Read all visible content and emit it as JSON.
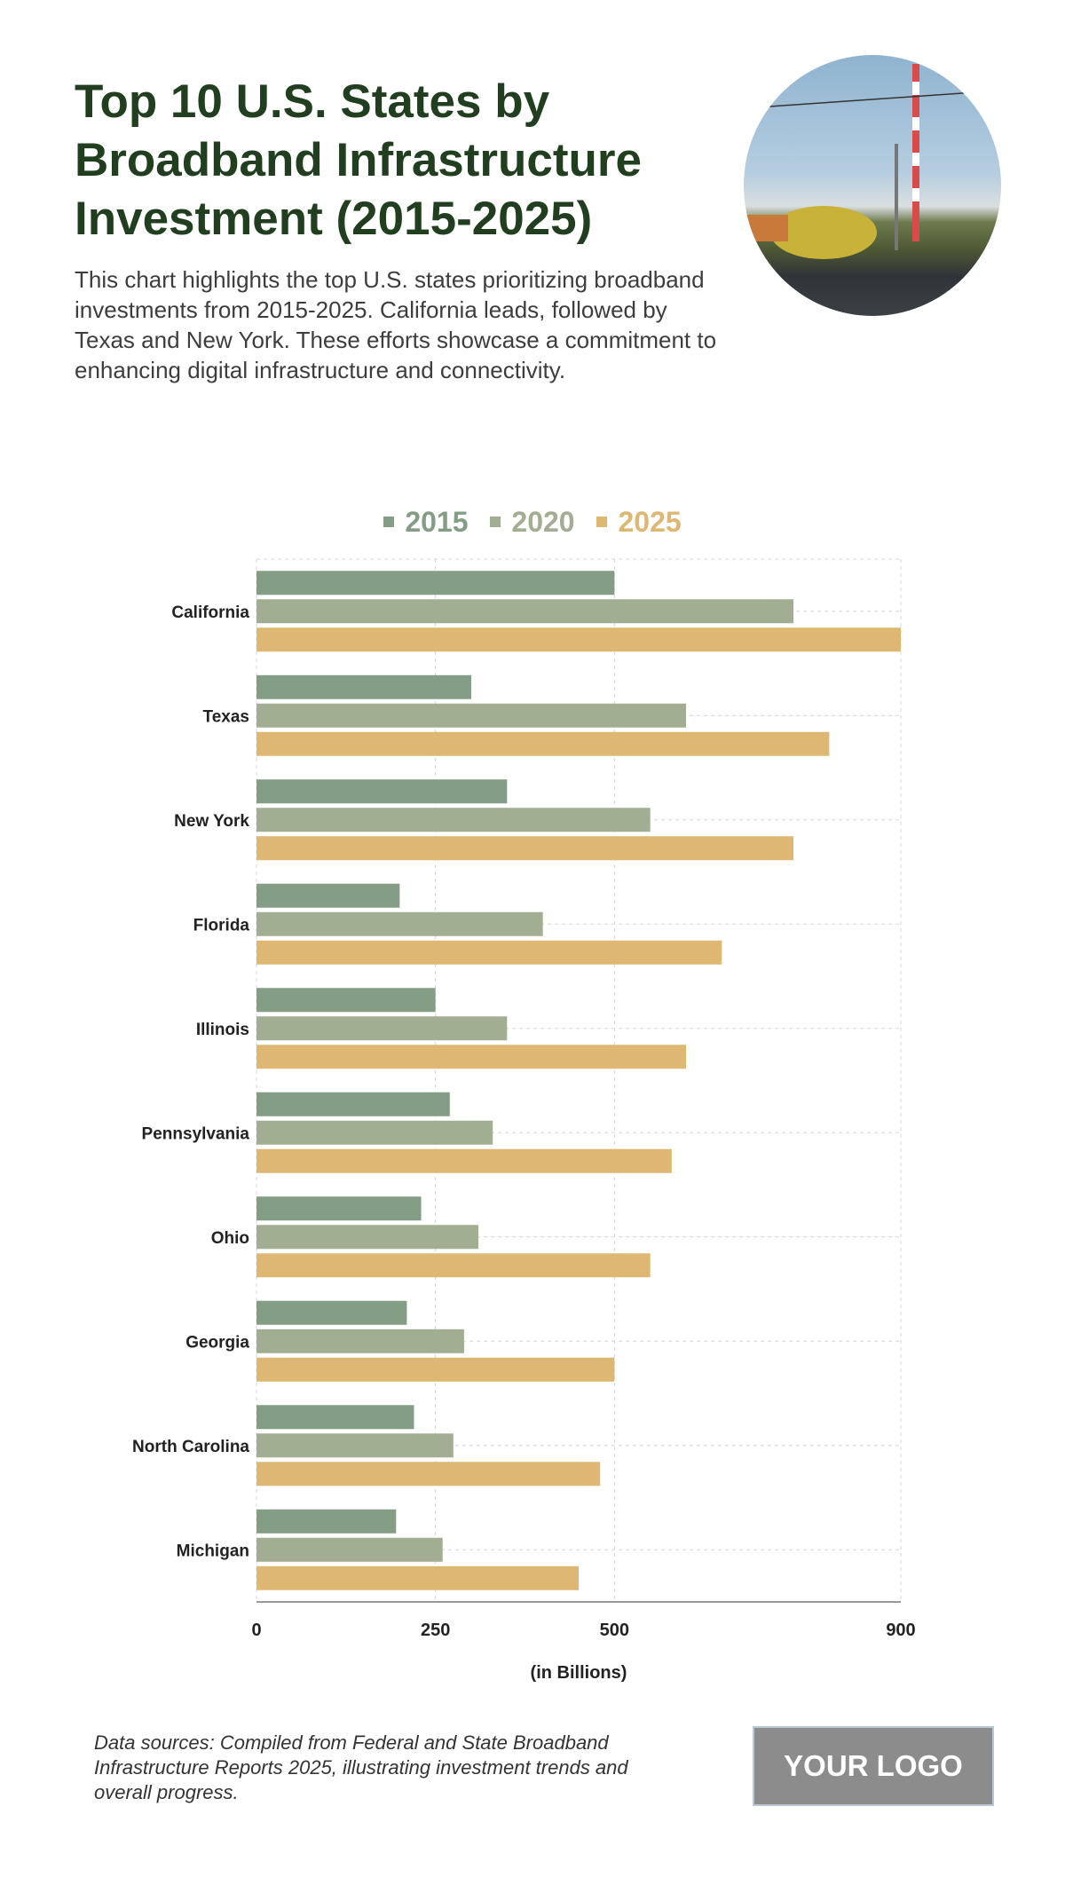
{
  "header": {
    "title": "Top 10 U.S. States by Broadband Infrastructure Investment (2015-2025)",
    "subtitle": "This chart highlights the top U.S. states prioritizing broadband investments from 2015-2025. California leads, followed by Texas and New York. These efforts showcase a commitment to enhancing digital infrastructure and connectivity."
  },
  "footer": {
    "source": "Data sources: Compiled from Federal and State Broadband Infrastructure Reports 2025, illustrating investment trends and overall progress.",
    "logo": "YOUR LOGO"
  },
  "chart_data": {
    "type": "bar",
    "orientation": "horizontal",
    "title": "",
    "xlabel": "(in Billions)",
    "ylabel": "",
    "xlim": [
      0,
      900
    ],
    "xticks": [
      0,
      250,
      500,
      900
    ],
    "grid": true,
    "legend_position": "top",
    "categories": [
      "California",
      "Texas",
      "New York",
      "Florida",
      "Illinois",
      "Pennsylvania",
      "Ohio",
      "Georgia",
      "North Carolina",
      "Michigan"
    ],
    "series": [
      {
        "name": "2015",
        "color": "#839e84",
        "values": [
          500,
          300,
          350,
          200,
          250,
          270,
          230,
          210,
          220,
          195
        ]
      },
      {
        "name": "2020",
        "color": "#a2ae91",
        "values": [
          750,
          600,
          550,
          400,
          350,
          330,
          310,
          290,
          275,
          260
        ]
      },
      {
        "name": "2025",
        "color": "#deb873",
        "values": [
          900,
          800,
          750,
          650,
          600,
          580,
          550,
          500,
          480,
          450
        ]
      }
    ]
  }
}
